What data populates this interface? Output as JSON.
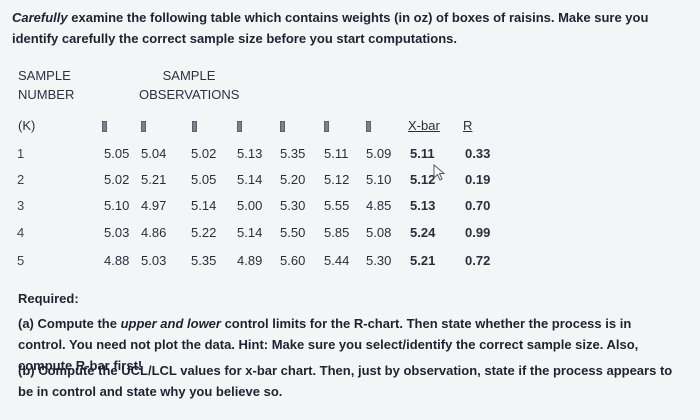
{
  "intro": {
    "prefix": "Carefully",
    "rest": " examine the following table which contains weights (in oz) of boxes of raisins.  Make sure you identify carefully the correct sample size before you start computations."
  },
  "table": {
    "col_sample_number": [
      "SAMPLE",
      "NUMBER"
    ],
    "col_sample_obs": [
      "SAMPLE",
      "OBSERVATIONS"
    ],
    "k_label": "(K)",
    "xbar_label": "X-bar",
    "r_label": "R",
    "rows": [
      {
        "k": "1",
        "obs": [
          "5.05",
          "5.04",
          "5.02",
          "5.13",
          "5.35",
          "5.11",
          "5.09"
        ],
        "xbar": "5.11",
        "r": "0.33"
      },
      {
        "k": "2",
        "obs": [
          "5.02",
          "5.21",
          "5.05",
          "5.14",
          "5.20",
          "5.12",
          "5.10"
        ],
        "xbar": "5.12",
        "r": "0.19"
      },
      {
        "k": "3",
        "obs": [
          "5.10",
          "4.97",
          "5.14",
          "5.00",
          "5.30",
          "5.55",
          "4.85"
        ],
        "xbar": "5.13",
        "r": "0.70"
      },
      {
        "k": "4",
        "obs": [
          "5.03",
          "4.86",
          "5.22",
          "5.14",
          "5.50",
          "5.85",
          "5.08"
        ],
        "xbar": "5.24",
        "r": "0.99"
      },
      {
        "k": "5",
        "obs": [
          "4.88",
          "5.03",
          "5.35",
          "4.89",
          "5.60",
          "5.44",
          "5.30"
        ],
        "xbar": "5.21",
        "r": "0.72"
      }
    ]
  },
  "required": {
    "title": "Required:",
    "a_prefix": "(a) Compute the ",
    "a_italic": "upper and lower",
    "a_rest": " control limits for the R-chart.  Then state whether the process is in control.  You need not plot the data.  Hint: Make sure you select/identify the correct sample size.  Also, compute R-bar first!",
    "b": "(b) Compute  the UCL/LCL values for x-bar chart.  Then, just by observation, state if the process appears to be in control and state why you believe so."
  }
}
